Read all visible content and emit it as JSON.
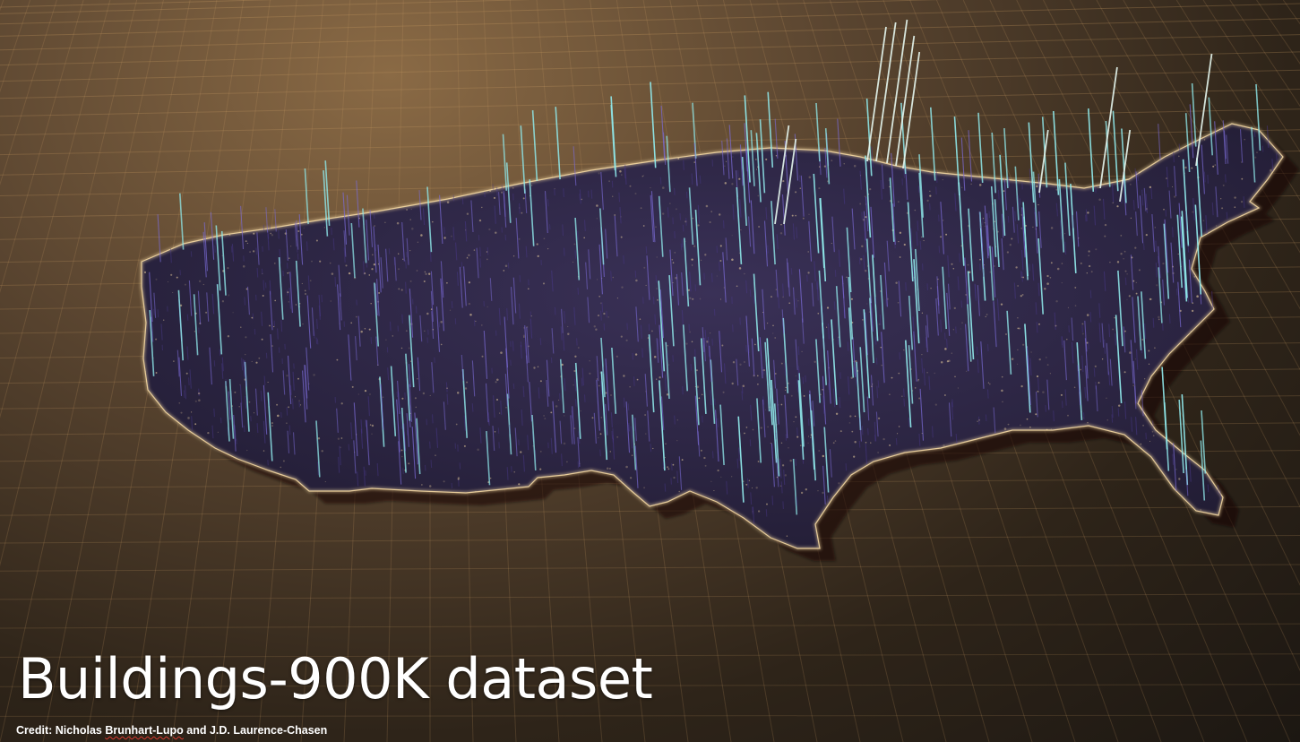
{
  "title": "Buildings-900K dataset",
  "credit": {
    "prefix": "Credit: Nicholas ",
    "name_flagged": "Brunhart-Lupo",
    "suffix": " and J.D. Laurence-Chasen"
  },
  "map": {
    "region_name": "Contiguous United States",
    "icon": "usa-3d-spike-map"
  },
  "colors": {
    "background_light": "#8a6a45",
    "background_dark": "#1c1712",
    "grid_line": "#c79a62",
    "land_fill": "#2b2540",
    "coast_glow": "#f3d7a2",
    "spike_low": "#4a3a8c",
    "spike_mid": "#7b6bd6",
    "spike_high": "#8fe8ea",
    "title_text": "#ffffff",
    "spellcheck_squiggle": "#d43a2f"
  }
}
